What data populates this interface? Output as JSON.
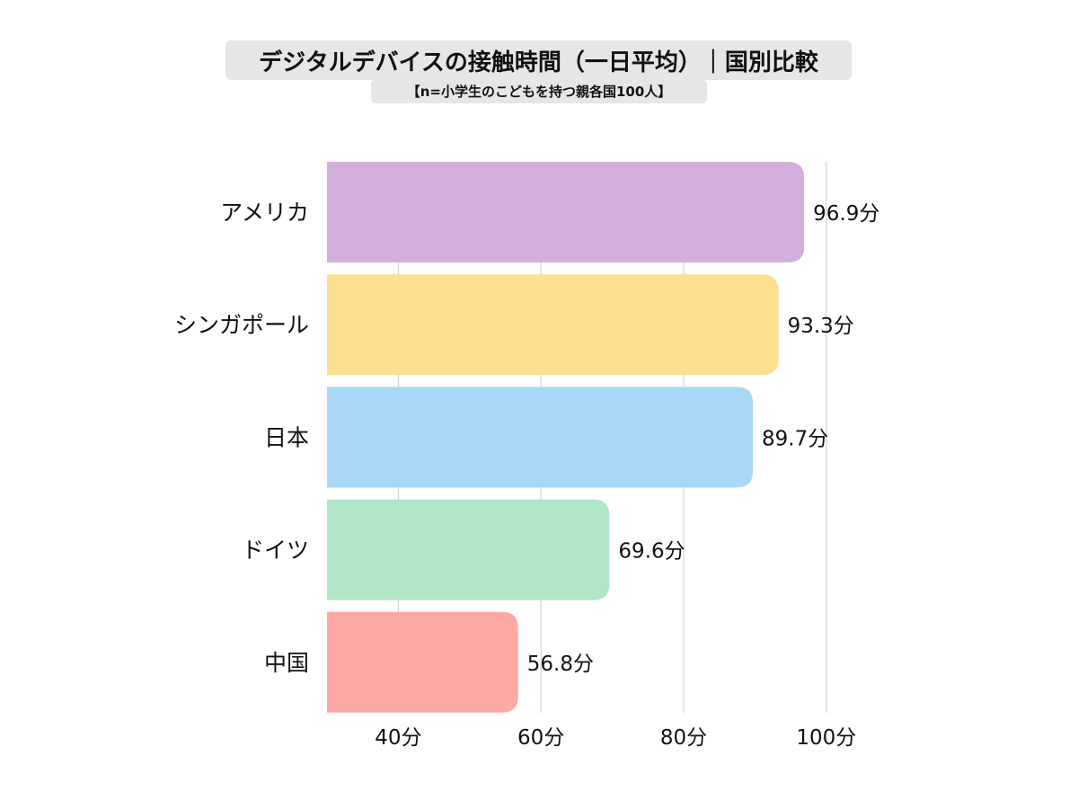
{
  "chart_data": {
    "type": "bar",
    "orientation": "horizontal",
    "title": "デジタルデバイスの接触時間（一日平均）｜国別比較",
    "subtitle": "【n=小学生のこどもを持つ親各国100人】",
    "categories": [
      "アメリカ",
      "シンガポール",
      "日本",
      "ドイツ",
      "中国"
    ],
    "values": [
      96.9,
      93.3,
      89.7,
      69.6,
      56.8
    ],
    "value_labels": [
      "96.9分",
      "93.3分",
      "89.7分",
      "69.6分",
      "56.8分"
    ],
    "colors": [
      "#d4aedd",
      "#fde08f",
      "#a8d8f5",
      "#b0e6c6",
      "#fca9a6"
    ],
    "xlim": [
      30,
      100
    ],
    "xticks": [
      40,
      60,
      80,
      100
    ],
    "xtick_labels": [
      "40分",
      "60分",
      "80分",
      "100分"
    ],
    "grid": true,
    "legend": "none"
  }
}
